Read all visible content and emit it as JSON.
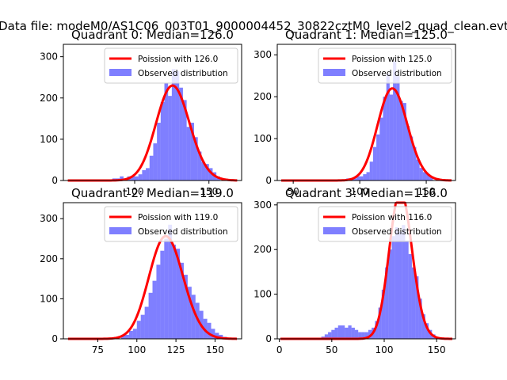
{
  "suptitle": "Data file: modeM0/AS1C06_003T01_9000004452_30822cztM0_level2_quad_clean.evt",
  "colors": {
    "curve": "#ff0000",
    "bars": "#0000ff",
    "bars_alpha": 0.5,
    "axes": "#000000"
  },
  "chart_data": [
    {
      "type": "bar",
      "quadrant": 0,
      "title": "Quadrant 0: Median=126.0",
      "curve_label": "Poission with 126.0",
      "bars_label": "Observed distribution",
      "legend_position": "upper-right",
      "median": 126.0,
      "xlim": [
        52,
        172
      ],
      "ylim": [
        0,
        330
      ],
      "xticks": [
        100,
        150
      ],
      "yticks": [
        0,
        100,
        200,
        300
      ],
      "bin_width": 2.5,
      "bins": [
        [
          85,
          5
        ],
        [
          87.5,
          5
        ],
        [
          90,
          10
        ],
        [
          92.5,
          5
        ],
        [
          95,
          10
        ],
        [
          97.5,
          10
        ],
        [
          100,
          10
        ],
        [
          102.5,
          15
        ],
        [
          105,
          25
        ],
        [
          107.5,
          30
        ],
        [
          110,
          60
        ],
        [
          112.5,
          90
        ],
        [
          115,
          140
        ],
        [
          117.5,
          190
        ],
        [
          120,
          235
        ],
        [
          122.5,
          205
        ],
        [
          125,
          270
        ],
        [
          127.5,
          265
        ],
        [
          130,
          225
        ],
        [
          132.5,
          195
        ],
        [
          135,
          130
        ],
        [
          137.5,
          140
        ],
        [
          140,
          105
        ],
        [
          142.5,
          70
        ],
        [
          145,
          45
        ],
        [
          147.5,
          40
        ],
        [
          150,
          30
        ],
        [
          152.5,
          20
        ],
        [
          155,
          10
        ]
      ]
    },
    {
      "type": "bar",
      "quadrant": 1,
      "title": "Quadrant 1: Median=125.0",
      "curve_label": "Poission with 125.0",
      "bars_label": "Observed distribution",
      "legend_position": "upper-right",
      "median": 125.0,
      "xlim": [
        38,
        172
      ],
      "ylim": [
        0,
        325
      ],
      "xticks": [
        50,
        100,
        150
      ],
      "yticks": [
        0,
        100,
        200,
        300
      ],
      "bin_width": 2.5,
      "bins": [
        [
          90,
          5
        ],
        [
          92.5,
          5
        ],
        [
          95,
          5
        ],
        [
          97.5,
          10
        ],
        [
          100,
          10
        ],
        [
          102.5,
          15
        ],
        [
          105,
          20
        ],
        [
          107.5,
          45
        ],
        [
          110,
          80
        ],
        [
          112.5,
          110
        ],
        [
          115,
          150
        ],
        [
          117.5,
          200
        ],
        [
          120,
          255
        ],
        [
          122.5,
          205
        ],
        [
          125,
          285
        ],
        [
          127.5,
          250
        ],
        [
          130,
          190
        ],
        [
          132.5,
          185
        ],
        [
          135,
          130
        ],
        [
          137.5,
          105
        ],
        [
          140,
          80
        ],
        [
          142.5,
          50
        ],
        [
          145,
          30
        ],
        [
          147.5,
          20
        ],
        [
          150,
          15
        ],
        [
          152.5,
          10
        ]
      ]
    },
    {
      "type": "bar",
      "quadrant": 2,
      "title": "Quadrant 2: Median=119.0",
      "curve_label": "Poission with 119.0",
      "bars_label": "Observed distribution",
      "legend_position": "upper-right",
      "median": 119.0,
      "xlim": [
        53,
        167
      ],
      "ylim": [
        0,
        340
      ],
      "xticks": [
        75,
        100,
        125,
        150
      ],
      "yticks": [
        0,
        100,
        200,
        300
      ],
      "bin_width": 2.5,
      "bins": [
        [
          90,
          10
        ],
        [
          92.5,
          10
        ],
        [
          95,
          20
        ],
        [
          97.5,
          25
        ],
        [
          100,
          45
        ],
        [
          102.5,
          60
        ],
        [
          105,
          80
        ],
        [
          107.5,
          115
        ],
        [
          110,
          145
        ],
        [
          112.5,
          185
        ],
        [
          115,
          220
        ],
        [
          117.5,
          250
        ],
        [
          120,
          285
        ],
        [
          122.5,
          235
        ],
        [
          125,
          225
        ],
        [
          127.5,
          190
        ],
        [
          130,
          160
        ],
        [
          132.5,
          130
        ],
        [
          135,
          110
        ],
        [
          137.5,
          90
        ],
        [
          140,
          70
        ],
        [
          142.5,
          50
        ],
        [
          145,
          40
        ],
        [
          147.5,
          25
        ],
        [
          150,
          15
        ],
        [
          152.5,
          10
        ],
        [
          155,
          5
        ]
      ]
    },
    {
      "type": "bar",
      "quadrant": 3,
      "title": "Quadrant 3: Median=116.0",
      "curve_label": "Poission with 116.0",
      "bars_label": "Observed distribution",
      "legend_position": "upper-right",
      "median": 116.0,
      "xlim": [
        -2,
        168
      ],
      "ylim": [
        0,
        305
      ],
      "xticks": [
        0,
        50,
        100,
        150
      ],
      "yticks": [
        0,
        100,
        200,
        300
      ],
      "bin_width": 3.2,
      "bins": [
        [
          40,
          5
        ],
        [
          43.2,
          10
        ],
        [
          46.4,
          15
        ],
        [
          49.6,
          20
        ],
        [
          52.8,
          25
        ],
        [
          56,
          30
        ],
        [
          59.2,
          30
        ],
        [
          62.4,
          25
        ],
        [
          65.6,
          30
        ],
        [
          68.8,
          25
        ],
        [
          72,
          20
        ],
        [
          75.2,
          15
        ],
        [
          78.4,
          15
        ],
        [
          81.6,
          15
        ],
        [
          84.8,
          20
        ],
        [
          88,
          25
        ],
        [
          91.2,
          40
        ],
        [
          94.4,
          70
        ],
        [
          97.6,
          110
        ],
        [
          100.8,
          160
        ],
        [
          104,
          200
        ],
        [
          107.2,
          230
        ],
        [
          110.4,
          250
        ],
        [
          113.6,
          240
        ],
        [
          116.8,
          255
        ],
        [
          120,
          220
        ],
        [
          123.2,
          190
        ],
        [
          126.4,
          160
        ],
        [
          129.6,
          140
        ],
        [
          132.8,
          90
        ],
        [
          136,
          55
        ],
        [
          139.2,
          35
        ],
        [
          142.4,
          20
        ],
        [
          145.6,
          10
        ]
      ]
    }
  ]
}
